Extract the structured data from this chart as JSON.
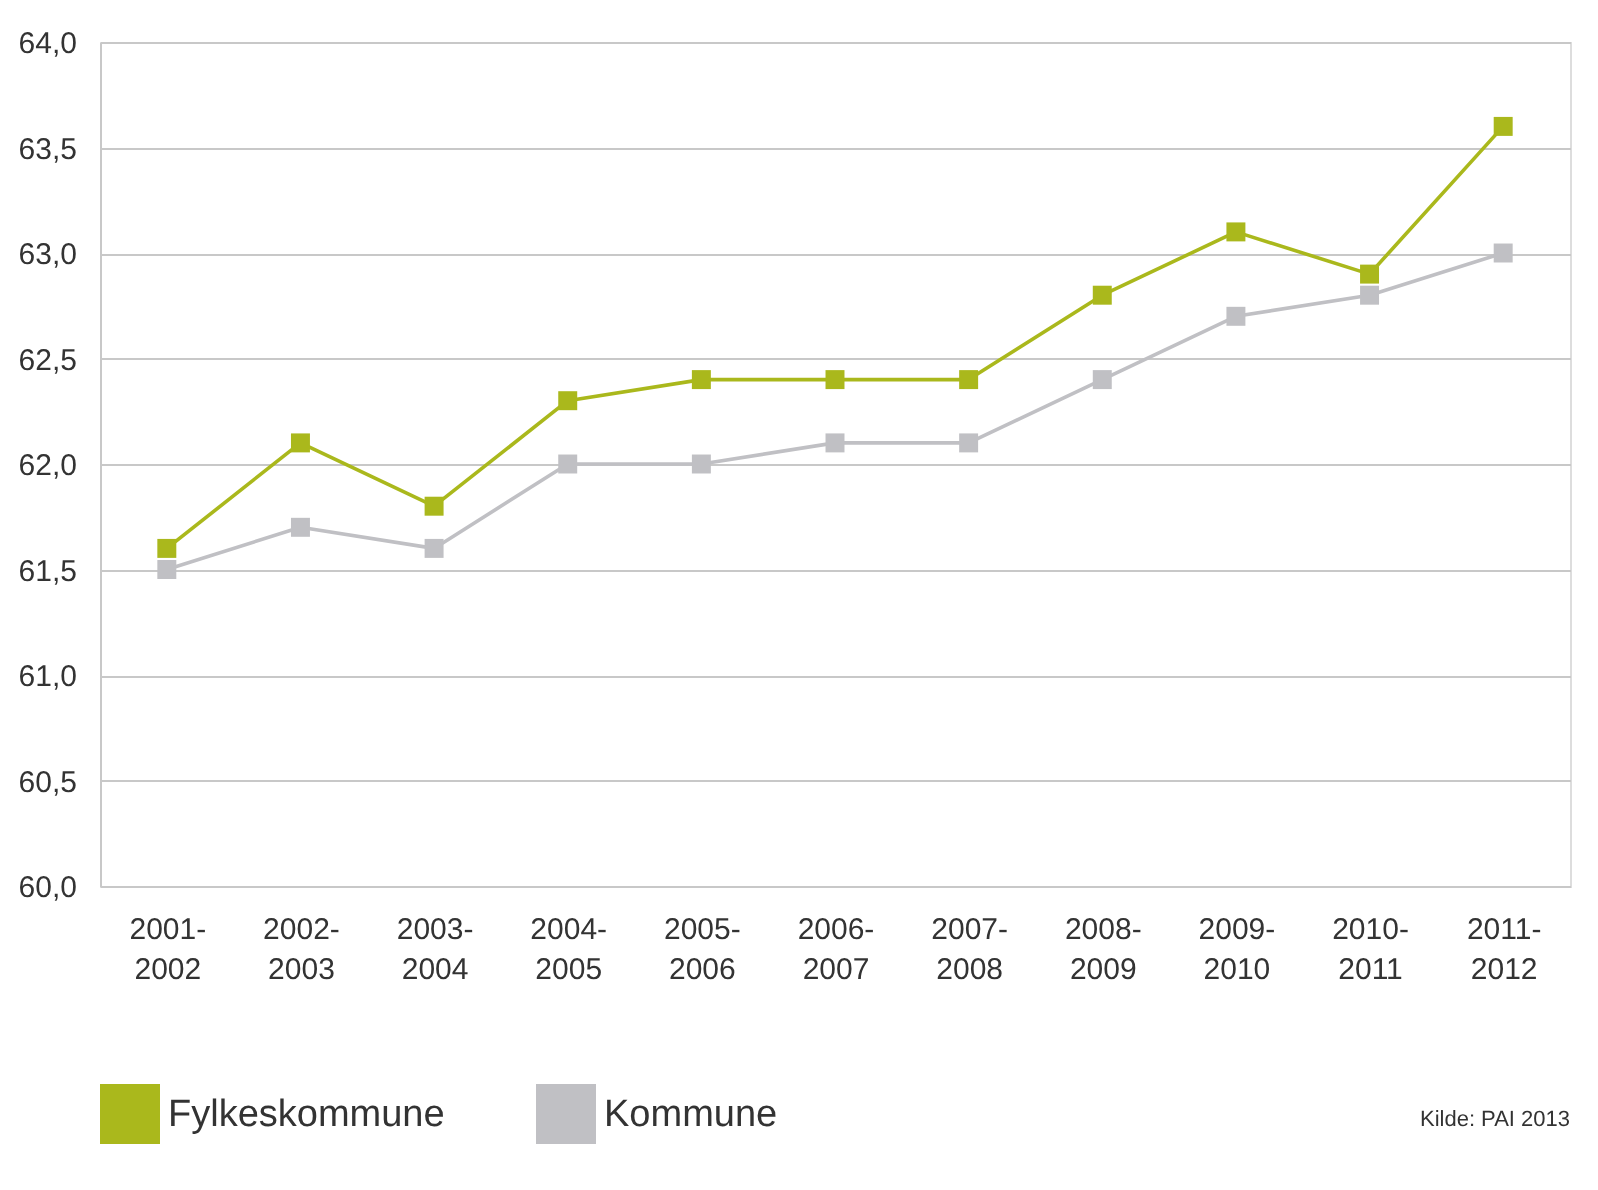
{
  "chart_data": {
    "type": "line",
    "categories": [
      "2001-2002",
      "2002-2003",
      "2003-2004",
      "2004-2005",
      "2005-2006",
      "2006-2007",
      "2007-2008",
      "2008-2009",
      "2009-2010",
      "2010-2011",
      "2011-2012"
    ],
    "series": [
      {
        "name": "Fylkeskommune",
        "color": "#aab81c",
        "values": [
          61.6,
          62.1,
          61.8,
          62.3,
          62.4,
          62.4,
          62.4,
          62.8,
          63.1,
          62.9,
          63.6
        ]
      },
      {
        "name": "Kommune",
        "color": "#c0c0c4",
        "values": [
          61.5,
          61.7,
          61.6,
          62.0,
          62.0,
          62.1,
          62.1,
          62.4,
          62.7,
          62.8,
          63.0
        ]
      }
    ],
    "ylim": [
      60.0,
      64.0
    ],
    "yticks": [
      {
        "value": 60.0,
        "label": "60,0"
      },
      {
        "value": 60.5,
        "label": "60,5"
      },
      {
        "value": 61.0,
        "label": "61,0"
      },
      {
        "value": 61.5,
        "label": "61,5"
      },
      {
        "value": 62.0,
        "label": "62,0"
      },
      {
        "value": 62.5,
        "label": "62,5"
      },
      {
        "value": 63.0,
        "label": "63,0"
      },
      {
        "value": 63.5,
        "label": "63,5"
      },
      {
        "value": 64.0,
        "label": "64,0"
      }
    ],
    "grid": "y",
    "legend": "bottom",
    "marker": "square",
    "line_style": "solid",
    "annotations": [
      "Kilde: PAI 2013"
    ]
  }
}
